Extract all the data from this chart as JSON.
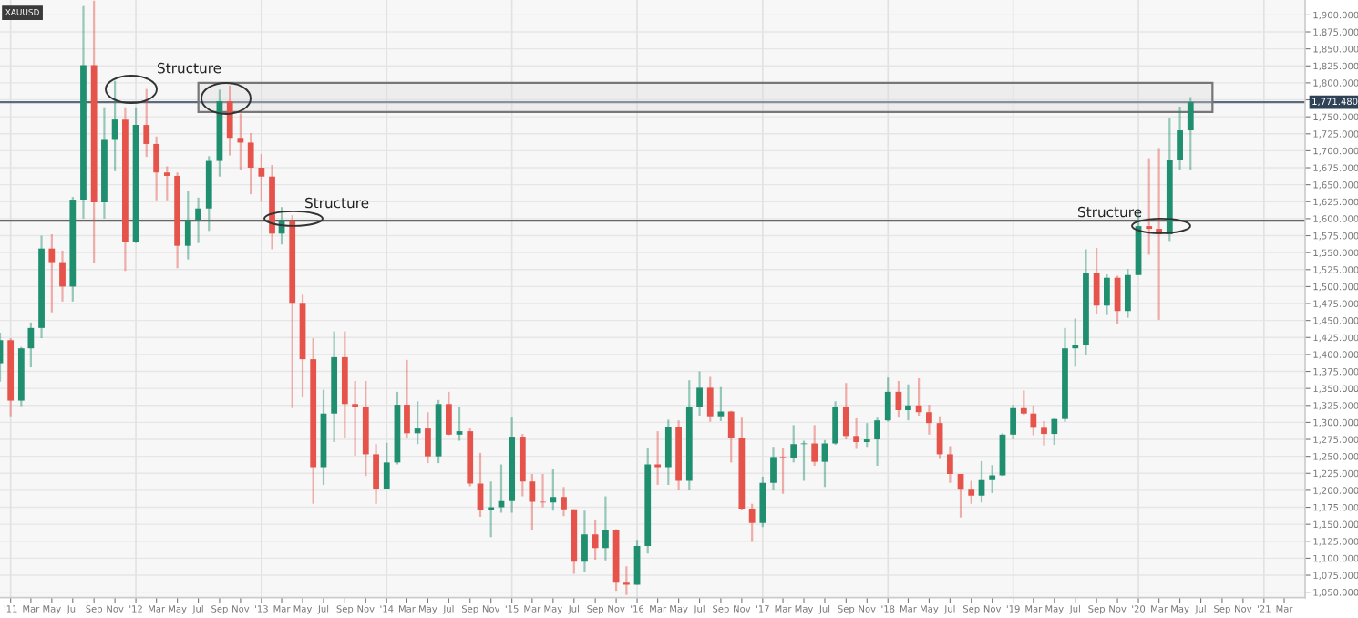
{
  "chart_data": {
    "type": "candlestick",
    "title": "XAUUSD",
    "x": [
      "2010-12",
      "2011-01",
      "2011-02",
      "2011-03",
      "2011-04",
      "2011-05",
      "2011-06",
      "2011-07",
      "2011-08",
      "2011-09",
      "2011-10",
      "2011-11",
      "2011-12",
      "2012-01",
      "2012-02",
      "2012-03",
      "2012-04",
      "2012-05",
      "2012-06",
      "2012-07",
      "2012-08",
      "2012-09",
      "2012-10",
      "2012-11",
      "2012-12",
      "2013-01",
      "2013-02",
      "2013-03",
      "2013-04",
      "2013-05",
      "2013-06",
      "2013-07",
      "2013-08",
      "2013-09",
      "2013-10",
      "2013-11",
      "2013-12",
      "2014-01",
      "2014-02",
      "2014-03",
      "2014-04",
      "2014-05",
      "2014-06",
      "2014-07",
      "2014-08",
      "2014-09",
      "2014-10",
      "2014-11",
      "2014-12",
      "2015-01",
      "2015-02",
      "2015-03",
      "2015-04",
      "2015-05",
      "2015-06",
      "2015-07",
      "2015-08",
      "2015-09",
      "2015-10",
      "2015-11",
      "2015-12",
      "2016-01",
      "2016-02",
      "2016-03",
      "2016-04",
      "2016-05",
      "2016-06",
      "2016-07",
      "2016-08",
      "2016-09",
      "2016-10",
      "2016-11",
      "2016-12",
      "2017-01",
      "2017-02",
      "2017-03",
      "2017-04",
      "2017-05",
      "2017-06",
      "2017-07",
      "2017-08",
      "2017-09",
      "2017-10",
      "2017-11",
      "2017-12",
      "2018-01",
      "2018-02",
      "2018-03",
      "2018-04",
      "2018-05",
      "2018-06",
      "2018-07",
      "2018-08",
      "2018-09",
      "2018-10",
      "2018-11",
      "2018-12",
      "2019-01",
      "2019-02",
      "2019-03",
      "2019-04",
      "2019-05",
      "2019-06",
      "2019-07",
      "2019-08",
      "2019-09",
      "2019-10",
      "2019-11",
      "2019-12",
      "2020-01",
      "2020-02",
      "2020-03",
      "2020-04",
      "2020-05",
      "2020-06"
    ],
    "ohlc": [
      [
        1387,
        1432,
        1360,
        1421
      ],
      [
        1421,
        1424,
        1309,
        1332
      ],
      [
        1332,
        1411,
        1324,
        1409
      ],
      [
        1409,
        1447,
        1381,
        1439
      ],
      [
        1439,
        1575,
        1424,
        1556
      ],
      [
        1556,
        1577,
        1462,
        1536
      ],
      [
        1536,
        1553,
        1478,
        1500
      ],
      [
        1500,
        1632,
        1478,
        1628
      ],
      [
        1628,
        1913,
        1600,
        1826
      ],
      [
        1826,
        1921,
        1535,
        1624
      ],
      [
        1624,
        1764,
        1600,
        1716
      ],
      [
        1716,
        1803,
        1670,
        1746
      ],
      [
        1746,
        1764,
        1523,
        1565
      ],
      [
        1565,
        1764,
        1564,
        1738
      ],
      [
        1738,
        1791,
        1691,
        1710
      ],
      [
        1710,
        1721,
        1627,
        1668
      ],
      [
        1668,
        1677,
        1627,
        1663
      ],
      [
        1663,
        1668,
        1527,
        1560
      ],
      [
        1560,
        1641,
        1540,
        1598
      ],
      [
        1598,
        1631,
        1564,
        1615
      ],
      [
        1615,
        1692,
        1582,
        1685
      ],
      [
        1685,
        1790,
        1662,
        1773
      ],
      [
        1773,
        1796,
        1693,
        1719
      ],
      [
        1719,
        1755,
        1672,
        1712
      ],
      [
        1712,
        1726,
        1636,
        1675
      ],
      [
        1675,
        1695,
        1625,
        1662
      ],
      [
        1662,
        1679,
        1555,
        1578
      ],
      [
        1578,
        1617,
        1562,
        1597
      ],
      [
        1597,
        1605,
        1321,
        1476
      ],
      [
        1476,
        1488,
        1338,
        1393
      ],
      [
        1393,
        1424,
        1180,
        1234
      ],
      [
        1234,
        1348,
        1208,
        1313
      ],
      [
        1313,
        1434,
        1271,
        1396
      ],
      [
        1396,
        1434,
        1277,
        1327
      ],
      [
        1327,
        1361,
        1251,
        1323
      ],
      [
        1323,
        1361,
        1221,
        1253
      ],
      [
        1253,
        1268,
        1180,
        1202
      ],
      [
        1202,
        1270,
        1202,
        1241
      ],
      [
        1241,
        1345,
        1238,
        1326
      ],
      [
        1326,
        1392,
        1277,
        1284
      ],
      [
        1284,
        1331,
        1268,
        1291
      ],
      [
        1291,
        1315,
        1240,
        1250
      ],
      [
        1250,
        1333,
        1240,
        1327
      ],
      [
        1327,
        1345,
        1281,
        1282
      ],
      [
        1282,
        1323,
        1273,
        1287
      ],
      [
        1287,
        1291,
        1206,
        1210
      ],
      [
        1210,
        1255,
        1161,
        1171
      ],
      [
        1171,
        1213,
        1131,
        1175
      ],
      [
        1175,
        1238,
        1167,
        1184
      ],
      [
        1184,
        1307,
        1167,
        1279
      ],
      [
        1279,
        1283,
        1191,
        1213
      ],
      [
        1213,
        1224,
        1142,
        1183
      ],
      [
        1183,
        1224,
        1175,
        1182
      ],
      [
        1182,
        1232,
        1170,
        1190
      ],
      [
        1190,
        1205,
        1162,
        1172
      ],
      [
        1172,
        1172,
        1077,
        1095
      ],
      [
        1095,
        1170,
        1080,
        1135
      ],
      [
        1135,
        1157,
        1098,
        1115
      ],
      [
        1115,
        1191,
        1097,
        1142
      ],
      [
        1142,
        1143,
        1052,
        1064
      ],
      [
        1064,
        1088,
        1046,
        1061
      ],
      [
        1061,
        1127,
        1061,
        1118
      ],
      [
        1118,
        1263,
        1107,
        1238
      ],
      [
        1238,
        1287,
        1208,
        1234
      ],
      [
        1234,
        1304,
        1208,
        1293
      ],
      [
        1293,
        1303,
        1200,
        1214
      ],
      [
        1214,
        1362,
        1200,
        1322
      ],
      [
        1322,
        1375,
        1310,
        1351
      ],
      [
        1351,
        1367,
        1301,
        1309
      ],
      [
        1309,
        1352,
        1302,
        1316
      ],
      [
        1316,
        1317,
        1241,
        1277
      ],
      [
        1277,
        1307,
        1171,
        1173
      ],
      [
        1173,
        1180,
        1124,
        1152
      ],
      [
        1152,
        1220,
        1146,
        1211
      ],
      [
        1211,
        1264,
        1200,
        1249
      ],
      [
        1249,
        1262,
        1195,
        1247
      ],
      [
        1247,
        1296,
        1241,
        1268
      ],
      [
        1268,
        1273,
        1214,
        1269
      ],
      [
        1269,
        1296,
        1236,
        1242
      ],
      [
        1242,
        1274,
        1205,
        1269
      ],
      [
        1269,
        1331,
        1267,
        1322
      ],
      [
        1322,
        1358,
        1275,
        1280
      ],
      [
        1280,
        1306,
        1261,
        1271
      ],
      [
        1271,
        1299,
        1264,
        1275
      ],
      [
        1275,
        1307,
        1236,
        1303
      ],
      [
        1303,
        1366,
        1301,
        1345
      ],
      [
        1345,
        1361,
        1307,
        1318
      ],
      [
        1318,
        1356,
        1303,
        1325
      ],
      [
        1325,
        1365,
        1310,
        1315
      ],
      [
        1315,
        1326,
        1282,
        1299
      ],
      [
        1299,
        1309,
        1246,
        1253
      ],
      [
        1253,
        1265,
        1211,
        1224
      ],
      [
        1224,
        1224,
        1160,
        1201
      ],
      [
        1201,
        1214,
        1180,
        1192
      ],
      [
        1192,
        1243,
        1182,
        1215
      ],
      [
        1215,
        1237,
        1196,
        1222
      ],
      [
        1222,
        1284,
        1221,
        1282
      ],
      [
        1282,
        1326,
        1275,
        1321
      ],
      [
        1321,
        1347,
        1311,
        1313
      ],
      [
        1313,
        1325,
        1281,
        1292
      ],
      [
        1292,
        1302,
        1266,
        1283
      ],
      [
        1283,
        1306,
        1267,
        1305
      ],
      [
        1305,
        1439,
        1301,
        1409
      ],
      [
        1409,
        1453,
        1382,
        1414
      ],
      [
        1414,
        1555,
        1400,
        1520
      ],
      [
        1520,
        1557,
        1459,
        1472
      ],
      [
        1472,
        1518,
        1458,
        1513
      ],
      [
        1513,
        1516,
        1445,
        1464
      ],
      [
        1464,
        1526,
        1454,
        1517
      ],
      [
        1517,
        1611,
        1517,
        1589
      ],
      [
        1589,
        1689,
        1547,
        1585
      ],
      [
        1585,
        1704,
        1451,
        1577
      ],
      [
        1577,
        1748,
        1567,
        1686
      ],
      [
        1686,
        1765,
        1671,
        1730
      ],
      [
        1730,
        1779,
        1671,
        1771.48
      ]
    ],
    "colors": [
      "#1f8f6f",
      "#e5534b",
      "#1f8f6f",
      "#1f8f6f",
      "#1f8f6f",
      "#e5534b",
      "#e5534b",
      "#1f8f6f",
      "#1f8f6f",
      "#e5534b",
      "#1f8f6f",
      "#1f8f6f",
      "#e5534b",
      "#1f8f6f",
      "#e5534b",
      "#e5534b",
      "#e5534b",
      "#e5534b",
      "#1f8f6f",
      "#1f8f6f",
      "#1f8f6f",
      "#1f8f6f",
      "#e5534b",
      "#e5534b",
      "#e5534b",
      "#e5534b",
      "#e5534b",
      "#1f8f6f",
      "#e5534b",
      "#e5534b",
      "#e5534b",
      "#1f8f6f",
      "#1f8f6f",
      "#e5534b",
      "#e5534b",
      "#e5534b",
      "#e5534b",
      "#1f8f6f",
      "#1f8f6f",
      "#e5534b",
      "#1f8f6f",
      "#e5534b",
      "#1f8f6f",
      "#e5534b",
      "#1f8f6f",
      "#e5534b",
      "#e5534b",
      "#1f8f6f",
      "#1f8f6f",
      "#1f8f6f",
      "#e5534b",
      "#e5534b",
      "#e5534b",
      "#1f8f6f",
      "#e5534b",
      "#e5534b",
      "#1f8f6f",
      "#e5534b",
      "#1f8f6f",
      "#e5534b",
      "#e5534b",
      "#1f8f6f",
      "#1f8f6f",
      "#e5534b",
      "#1f8f6f",
      "#e5534b",
      "#1f8f6f",
      "#1f8f6f",
      "#e5534b",
      "#1f8f6f",
      "#e5534b",
      "#e5534b",
      "#e5534b",
      "#1f8f6f",
      "#1f8f6f",
      "#e5534b",
      "#1f8f6f",
      "#1f8f6f",
      "#e5534b",
      "#1f8f6f",
      "#1f8f6f",
      "#e5534b",
      "#e5534b",
      "#1f8f6f",
      "#1f8f6f",
      "#1f8f6f",
      "#e5534b",
      "#1f8f6f",
      "#e5534b",
      "#e5534b",
      "#e5534b",
      "#e5534b",
      "#e5534b",
      "#e5534b",
      "#1f8f6f",
      "#1f8f6f",
      "#1f8f6f",
      "#1f8f6f",
      "#e5534b",
      "#e5534b",
      "#e5534b",
      "#1f8f6f",
      "#1f8f6f",
      "#1f8f6f",
      "#1f8f6f",
      "#e5534b",
      "#1f8f6f",
      "#e5534b",
      "#1f8f6f",
      "#1f8f6f",
      "#e5534b",
      "#e5534b",
      "#1f8f6f",
      "#1f8f6f",
      "#1f8f6f"
    ],
    "xlim": [
      "2010-12",
      "2021-05"
    ],
    "xticks": [
      {
        "value": "2011-01",
        "label": "'11"
      },
      {
        "value": "2011-03",
        "label": "Mar"
      },
      {
        "value": "2011-05",
        "label": "May"
      },
      {
        "value": "2011-07",
        "label": "Jul"
      },
      {
        "value": "2011-09",
        "label": "Sep"
      },
      {
        "value": "2011-11",
        "label": "Nov"
      },
      {
        "value": "2012-01",
        "label": "'12"
      },
      {
        "value": "2012-03",
        "label": "Mar"
      },
      {
        "value": "2012-05",
        "label": "May"
      },
      {
        "value": "2012-07",
        "label": "Jul"
      },
      {
        "value": "2012-09",
        "label": "Sep"
      },
      {
        "value": "2012-11",
        "label": "Nov"
      },
      {
        "value": "2013-01",
        "label": "'13"
      },
      {
        "value": "2013-03",
        "label": "Mar"
      },
      {
        "value": "2013-05",
        "label": "May"
      },
      {
        "value": "2013-07",
        "label": "Jul"
      },
      {
        "value": "2013-09",
        "label": "Sep"
      },
      {
        "value": "2013-11",
        "label": "Nov"
      },
      {
        "value": "2014-01",
        "label": "'14"
      },
      {
        "value": "2014-03",
        "label": "Mar"
      },
      {
        "value": "2014-05",
        "label": "May"
      },
      {
        "value": "2014-07",
        "label": "Jul"
      },
      {
        "value": "2014-09",
        "label": "Sep"
      },
      {
        "value": "2014-11",
        "label": "Nov"
      },
      {
        "value": "2015-01",
        "label": "'15"
      },
      {
        "value": "2015-03",
        "label": "Mar"
      },
      {
        "value": "2015-05",
        "label": "May"
      },
      {
        "value": "2015-07",
        "label": "Jul"
      },
      {
        "value": "2015-09",
        "label": "Sep"
      },
      {
        "value": "2015-11",
        "label": "Nov"
      },
      {
        "value": "2016-01",
        "label": "'16"
      },
      {
        "value": "2016-03",
        "label": "Mar"
      },
      {
        "value": "2016-05",
        "label": "May"
      },
      {
        "value": "2016-07",
        "label": "Jul"
      },
      {
        "value": "2016-09",
        "label": "Sep"
      },
      {
        "value": "2016-11",
        "label": "Nov"
      },
      {
        "value": "2017-01",
        "label": "'17"
      },
      {
        "value": "2017-03",
        "label": "Mar"
      },
      {
        "value": "2017-05",
        "label": "May"
      },
      {
        "value": "2017-07",
        "label": "Jul"
      },
      {
        "value": "2017-09",
        "label": "Sep"
      },
      {
        "value": "2017-11",
        "label": "Nov"
      },
      {
        "value": "2018-01",
        "label": "'18"
      },
      {
        "value": "2018-03",
        "label": "Mar"
      },
      {
        "value": "2018-05",
        "label": "May"
      },
      {
        "value": "2018-07",
        "label": "Jul"
      },
      {
        "value": "2018-09",
        "label": "Sep"
      },
      {
        "value": "2018-11",
        "label": "Nov"
      },
      {
        "value": "2019-01",
        "label": "'19"
      },
      {
        "value": "2019-03",
        "label": "Mar"
      },
      {
        "value": "2019-05",
        "label": "May"
      },
      {
        "value": "2019-07",
        "label": "Jul"
      },
      {
        "value": "2019-09",
        "label": "Sep"
      },
      {
        "value": "2019-11",
        "label": "Nov"
      },
      {
        "value": "2020-01",
        "label": "'20"
      },
      {
        "value": "2020-03",
        "label": "Mar"
      },
      {
        "value": "2020-05",
        "label": "May"
      },
      {
        "value": "2020-07",
        "label": "Jul"
      },
      {
        "value": "2020-09",
        "label": "Sep"
      },
      {
        "value": "2020-11",
        "label": "Nov"
      },
      {
        "value": "2021-01",
        "label": "'21"
      },
      {
        "value": "2021-03",
        "label": "Mar"
      }
    ],
    "ylim": [
      1042,
      1922
    ],
    "yticks": [
      {
        "value": 1050,
        "label": "1,050.000"
      },
      {
        "value": 1075,
        "label": "1,075.000"
      },
      {
        "value": 1100,
        "label": "1,100.000"
      },
      {
        "value": 1125,
        "label": "1,125.000"
      },
      {
        "value": 1150,
        "label": "1,150.000"
      },
      {
        "value": 1175,
        "label": "1,175.000"
      },
      {
        "value": 1200,
        "label": "1,200.000"
      },
      {
        "value": 1225,
        "label": "1,225.000"
      },
      {
        "value": 1250,
        "label": "1,250.000"
      },
      {
        "value": 1275,
        "label": "1,275.000"
      },
      {
        "value": 1300,
        "label": "1,300.000"
      },
      {
        "value": 1325,
        "label": "1,325.000"
      },
      {
        "value": 1350,
        "label": "1,350.000"
      },
      {
        "value": 1375,
        "label": "1,375.000"
      },
      {
        "value": 1400,
        "label": "1,400.000"
      },
      {
        "value": 1425,
        "label": "1,425.000"
      },
      {
        "value": 1450,
        "label": "1,450.000"
      },
      {
        "value": 1475,
        "label": "1,475.000"
      },
      {
        "value": 1500,
        "label": "1,500.000"
      },
      {
        "value": 1525,
        "label": "1,525.000"
      },
      {
        "value": 1550,
        "label": "1,550.000"
      },
      {
        "value": 1575,
        "label": "1,575.000"
      },
      {
        "value": 1600,
        "label": "1,600.000"
      },
      {
        "value": 1625,
        "label": "1,625.000"
      },
      {
        "value": 1650,
        "label": "1,650.000"
      },
      {
        "value": 1675,
        "label": "1,675.000"
      },
      {
        "value": 1700,
        "label": "1,700.000"
      },
      {
        "value": 1725,
        "label": "1,725.000"
      },
      {
        "value": 1750,
        "label": "1,750.000"
      },
      {
        "value": 1775,
        "label": null
      },
      {
        "value": 1800,
        "label": "1,800.000"
      },
      {
        "value": 1825,
        "label": "1,825.000"
      },
      {
        "value": 1850,
        "label": "1,850.000"
      },
      {
        "value": 1875,
        "label": "1,875.000"
      },
      {
        "value": 1900,
        "label": "1,900.000"
      }
    ],
    "grid": true,
    "ref_lines": [
      {
        "axis": "y",
        "value": 1771.48,
        "label": "1,771.480",
        "color": "#5b6b7d"
      },
      {
        "axis": "y",
        "value": 1597,
        "color": "#666666"
      }
    ],
    "bands": [
      {
        "axis": "y",
        "from": 1757,
        "to": 1800,
        "color": "#777777"
      }
    ],
    "annotations": [
      "Structure",
      "Structure",
      "Structure"
    ]
  }
}
